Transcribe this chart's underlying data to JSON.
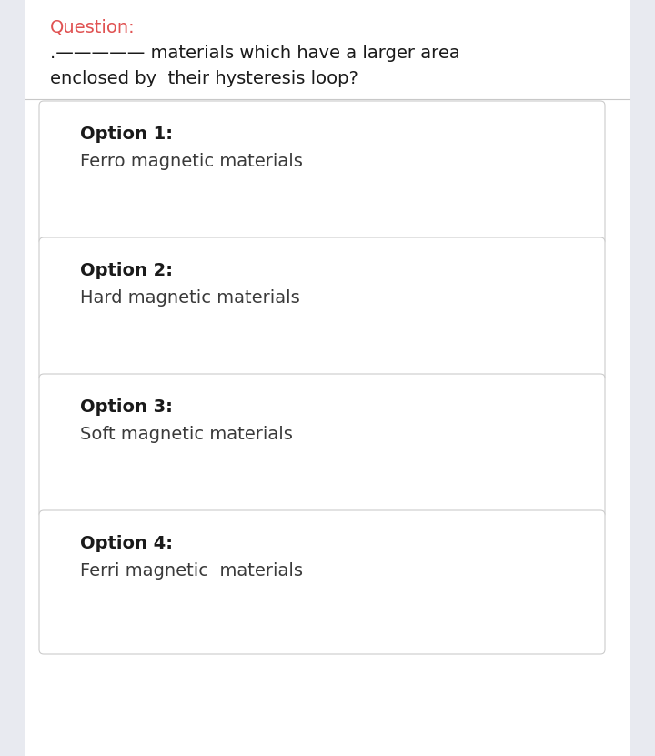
{
  "background_color": "#e8eaf0",
  "page_bg": "#ffffff",
  "question_label": "Question:",
  "question_label_color": "#e05252",
  "question_text_line1": ".————— materials which have a larger area",
  "question_text_line2": "enclosed by  their hysteresis loop?",
  "question_text_color": "#1a1a1a",
  "divider_color": "#c8c8c8",
  "options": [
    {
      "label": "Option 1:",
      "text": "Ferro magnetic materials"
    },
    {
      "label": "Option 2:",
      "text": "Hard magnetic materials"
    },
    {
      "label": "Option 3:",
      "text": "Soft magnetic materials"
    },
    {
      "label": "Option 4:",
      "text": "Ferri magnetic  materials"
    }
  ],
  "option_label_color": "#1a1a1a",
  "option_text_color": "#3a3a3a",
  "option_box_color": "#ffffff",
  "option_box_edge_color": "#cccccc",
  "option_label_fontsize": 14,
  "option_text_fontsize": 14,
  "question_label_fontsize": 14,
  "question_text_fontsize": 14
}
